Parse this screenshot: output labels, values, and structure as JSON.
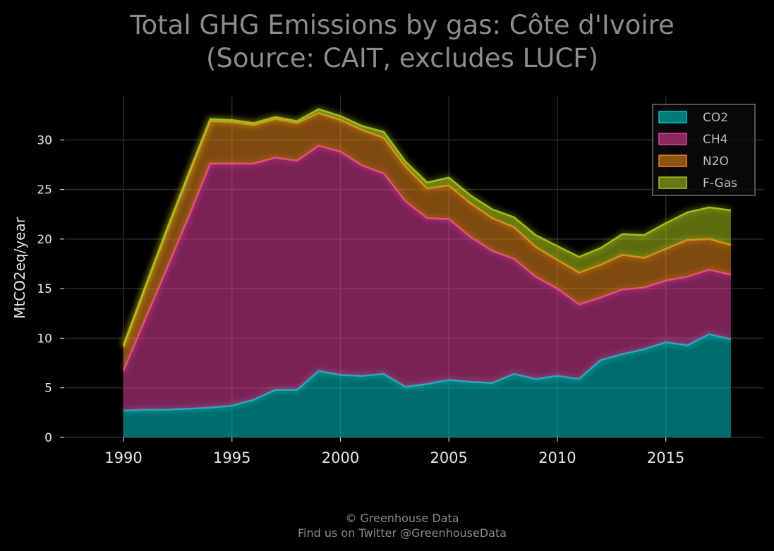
{
  "title_line1": "Total GHG Emissions by gas: Côte d'Ivoire",
  "title_line2": "(Source: CAIT, excludes LUCF)",
  "footer_line1": "© Greenhouse Data",
  "footer_line2": "Find us on Twitter @GreenhouseData",
  "chart_data": {
    "type": "area",
    "stacked": true,
    "title": "Total GHG Emissions by gas: Côte d'Ivoire (Source: CAIT, excludes LUCF)",
    "xlabel": "",
    "ylabel": "MtCO2eq/year",
    "xlim": [
      1987.3,
      2019.5
    ],
    "ylim": [
      0,
      34.5
    ],
    "x_ticks": [
      1990,
      1995,
      2000,
      2005,
      2010,
      2015
    ],
    "y_ticks": [
      0,
      5,
      10,
      15,
      20,
      25,
      30
    ],
    "grid": true,
    "legend_position": "top-right",
    "x": [
      1990,
      1991,
      1992,
      1993,
      1994,
      1995,
      1996,
      1997,
      1998,
      1999,
      2000,
      2001,
      2002,
      2003,
      2004,
      2005,
      2006,
      2007,
      2008,
      2009,
      2010,
      2011,
      2012,
      2013,
      2014,
      2015,
      2016,
      2017,
      2018
    ],
    "series": [
      {
        "name": "CO2",
        "color": "#00c5c5",
        "values": [
          2.7,
          2.8,
          2.8,
          2.9,
          3.0,
          3.2,
          3.8,
          4.8,
          4.8,
          6.7,
          6.3,
          6.2,
          6.4,
          5.1,
          5.4,
          5.8,
          5.6,
          5.5,
          6.4,
          5.9,
          6.2,
          5.9,
          7.8,
          8.4,
          8.9,
          9.6,
          9.3,
          10.4,
          9.9
        ]
      },
      {
        "name": "CH4",
        "color": "#e0409a",
        "values": [
          4.0,
          9.1,
          14.2,
          19.3,
          24.6,
          24.4,
          23.8,
          23.4,
          23.1,
          22.7,
          22.5,
          21.2,
          20.2,
          18.7,
          16.7,
          16.2,
          14.6,
          13.3,
          11.6,
          10.3,
          8.8,
          7.5,
          6.3,
          6.5,
          6.2,
          6.2,
          6.9,
          6.5,
          6.5
        ]
      },
      {
        "name": "N2O",
        "color": "#e8861a",
        "values": [
          2.4,
          3.1,
          3.8,
          4.2,
          4.3,
          4.2,
          3.9,
          3.9,
          3.8,
          3.3,
          3.2,
          3.6,
          3.6,
          3.5,
          3.0,
          3.4,
          3.4,
          3.3,
          3.2,
          3.0,
          2.9,
          3.2,
          3.3,
          3.5,
          3.0,
          3.2,
          3.7,
          3.1,
          3.0
        ]
      },
      {
        "name": "F-Gas",
        "color": "#a8c21a",
        "values": [
          0.2,
          0.2,
          0.2,
          0.2,
          0.2,
          0.2,
          0.2,
          0.2,
          0.2,
          0.4,
          0.4,
          0.4,
          0.6,
          0.5,
          0.6,
          0.8,
          0.8,
          0.9,
          1.0,
          1.2,
          1.4,
          1.6,
          1.7,
          2.1,
          2.3,
          2.6,
          2.8,
          3.2,
          3.5
        ]
      }
    ]
  }
}
